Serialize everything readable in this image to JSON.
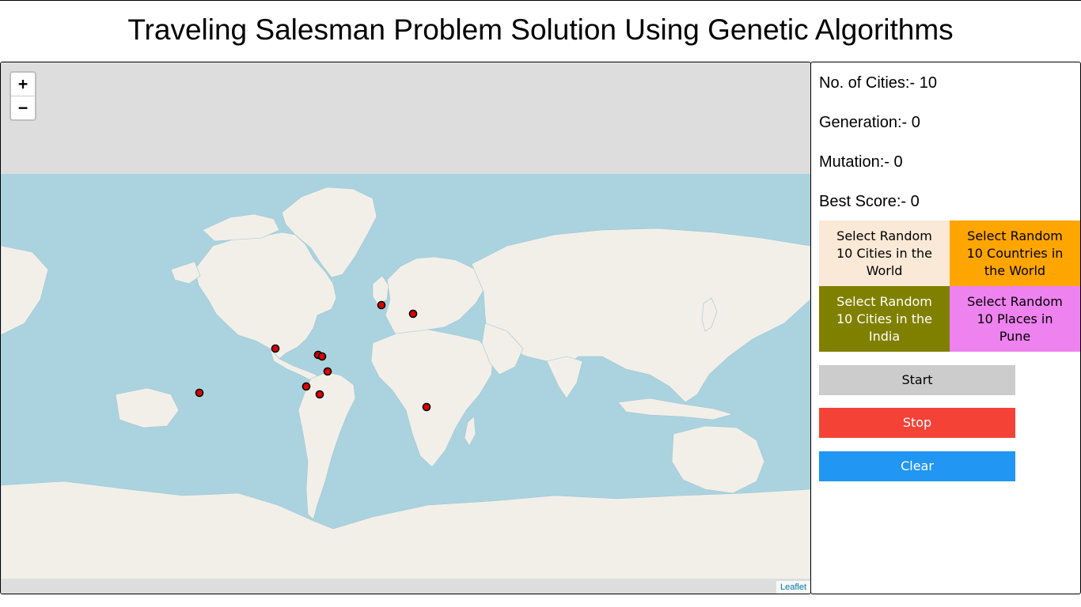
{
  "page": {
    "title": "Traveling Salesman Problem Solution Using Genetic Algorithms"
  },
  "map": {
    "zoom_in_label": "+",
    "zoom_out_label": "−",
    "attribution": "Leaflet",
    "colors": {
      "water": "#aad3df",
      "land": "#f2efe9",
      "background": "#dddddd",
      "marker": "#e00000"
    }
  },
  "stats": {
    "cities": "No. of Cities:- 10",
    "generation": "Generation:- 0",
    "mutation": "Mutation:- 0",
    "best_score": "Best Score:- 0"
  },
  "selectors": [
    {
      "label": "Select Random 10 Cities in the World",
      "color": "#fae9d7",
      "text_color": "#000000"
    },
    {
      "label": "Select Random 10 Countries in the World",
      "color": "#ffa500",
      "text_color": "#000000"
    },
    {
      "label": "Select Random 10 Cities in the India",
      "color": "#808000",
      "text_color": "#ffffff"
    },
    {
      "label": "Select Random 10 Places in Pune",
      "color": "#ee82ee",
      "text_color": "#000000"
    }
  ],
  "controls": {
    "start": {
      "label": "Start",
      "color": "#cccccc",
      "text_color": "#000000"
    },
    "stop": {
      "label": "Stop",
      "color": "#f44336",
      "text_color": "#ffffff"
    },
    "clear": {
      "label": "Clear",
      "color": "#2196f3",
      "text_color": "#ffffff"
    }
  }
}
